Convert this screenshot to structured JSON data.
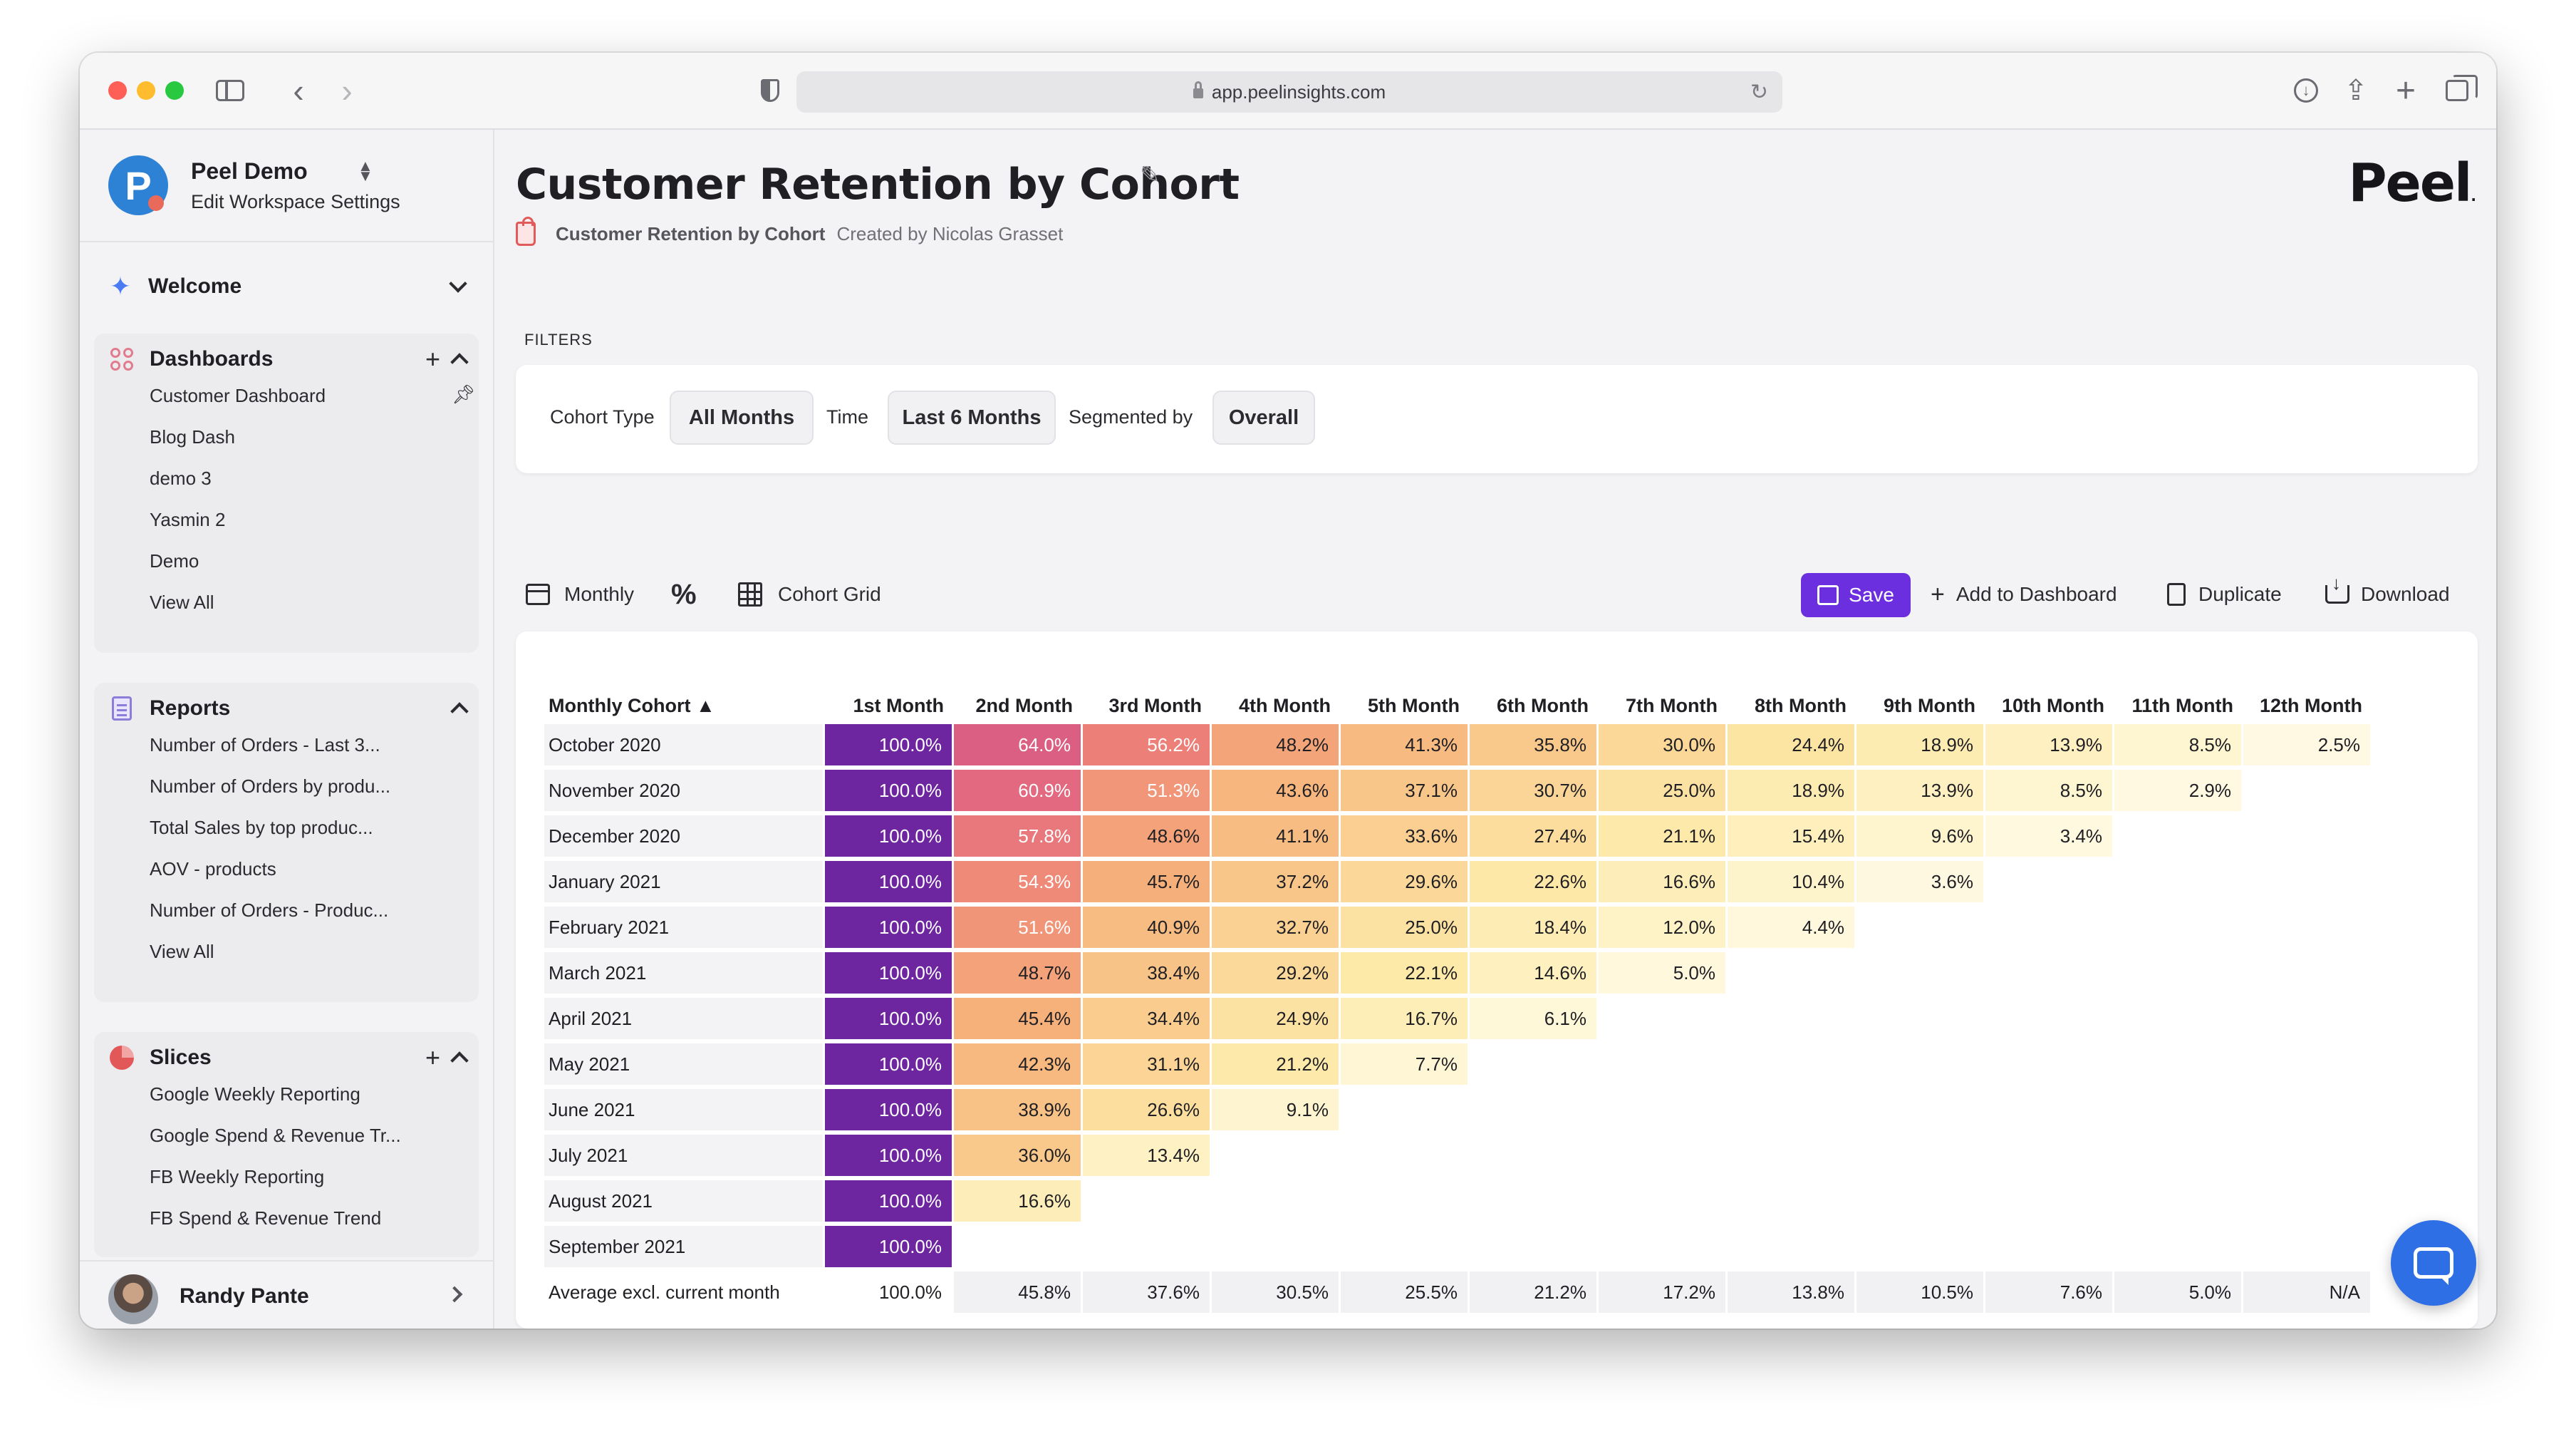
{
  "browser": {
    "url": "app.peelinsights.com"
  },
  "sidebar": {
    "workspace": {
      "name": "Peel Demo",
      "logo_letter": "P",
      "edit_label": "Edit Workspace Settings"
    },
    "welcome": {
      "title": "Welcome"
    },
    "dashboards": {
      "title": "Dashboards",
      "items": [
        "Customer Dashboard",
        "Blog Dash",
        "demo 3",
        "Yasmin 2",
        "Demo"
      ],
      "view_all": "View All"
    },
    "reports": {
      "title": "Reports",
      "items": [
        "Number of Orders - Last 3...",
        "Number of Orders by produ...",
        "Total Sales by top produc...",
        "AOV - products",
        "Number of Orders - Produc..."
      ],
      "view_all": "View All"
    },
    "slices": {
      "title": "Slices",
      "items": [
        "Google Weekly Reporting",
        "Google Spend & Revenue Tr...",
        "FB Weekly Reporting",
        "FB Spend & Revenue Trend"
      ]
    },
    "user": {
      "name": "Randy Pante"
    }
  },
  "header": {
    "title": "Customer Retention by Cohort",
    "report_name": "Customer Retention by Cohort",
    "created_by": "Created by Nicolas Grasset",
    "brand": "Peel",
    "brand_mark": "."
  },
  "filters": {
    "label": "FILTERS",
    "cohort_type_label": "Cohort Type",
    "cohort_type_value": "All Months",
    "time_label": "Time",
    "time_value": "Last 6 Months",
    "segment_label": "Segmented by",
    "segment_value": "Overall"
  },
  "toolbar": {
    "period": "Monthly",
    "percent_symbol": "%",
    "view": "Cohort Grid",
    "save": "Save",
    "add_to_dashboard": "Add to Dashboard",
    "duplicate": "Duplicate",
    "download": "Download"
  },
  "colors": {
    "accent": "#6b2fe0",
    "chat": "#2f6fe6"
  },
  "grid": {
    "corner_header": "Monthly Cohort ▲",
    "columns": [
      "1st Month",
      "2nd Month",
      "3rd Month",
      "4th Month",
      "5th Month",
      "6th Month",
      "7th Month",
      "8th Month",
      "9th Month",
      "10th Month",
      "11th Month",
      "12th Month"
    ],
    "rows": [
      {
        "cohort": "October 2020",
        "values": [
          100.0,
          64.0,
          56.2,
          48.2,
          41.3,
          35.8,
          30.0,
          24.4,
          18.9,
          13.9,
          8.5,
          2.5
        ]
      },
      {
        "cohort": "November 2020",
        "values": [
          100.0,
          60.9,
          51.3,
          43.6,
          37.1,
          30.7,
          25.0,
          18.9,
          13.9,
          8.5,
          2.9
        ]
      },
      {
        "cohort": "December 2020",
        "values": [
          100.0,
          57.8,
          48.6,
          41.1,
          33.6,
          27.4,
          21.1,
          15.4,
          9.6,
          3.4
        ]
      },
      {
        "cohort": "January 2021",
        "values": [
          100.0,
          54.3,
          45.7,
          37.2,
          29.6,
          22.6,
          16.6,
          10.4,
          3.6
        ]
      },
      {
        "cohort": "February 2021",
        "values": [
          100.0,
          51.6,
          40.9,
          32.7,
          25.0,
          18.4,
          12.0,
          4.4
        ]
      },
      {
        "cohort": "March 2021",
        "values": [
          100.0,
          48.7,
          38.4,
          29.2,
          22.1,
          14.6,
          5.0
        ]
      },
      {
        "cohort": "April 2021",
        "values": [
          100.0,
          45.4,
          34.4,
          24.9,
          16.7,
          6.1
        ]
      },
      {
        "cohort": "May 2021",
        "values": [
          100.0,
          42.3,
          31.1,
          21.2,
          7.7
        ]
      },
      {
        "cohort": "June 2021",
        "values": [
          100.0,
          38.9,
          26.6,
          9.1
        ]
      },
      {
        "cohort": "July 2021",
        "values": [
          100.0,
          36.0,
          13.4
        ]
      },
      {
        "cohort": "August 2021",
        "values": [
          100.0,
          16.6
        ]
      },
      {
        "cohort": "September 2021",
        "values": [
          100.0
        ]
      }
    ],
    "average": {
      "label": "Average excl. current month",
      "values": [
        "100.0%",
        "45.8%",
        "37.6%",
        "30.5%",
        "25.5%",
        "21.2%",
        "17.2%",
        "13.8%",
        "10.5%",
        "7.6%",
        "5.0%",
        "N/A"
      ]
    }
  }
}
